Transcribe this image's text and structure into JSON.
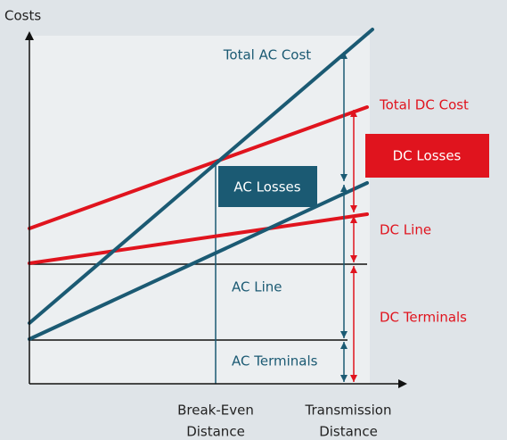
{
  "axis": {
    "y_label": "Costs"
  },
  "labels": {
    "total_ac_cost": "Total AC Cost",
    "total_dc_cost": "Total DC Cost",
    "dc_losses": "DC Losses",
    "ac_losses": "AC Losses",
    "dc_line": "DC Line",
    "ac_line": "AC Line",
    "dc_terminals": "DC Terminals",
    "ac_terminals": "AC Terminals"
  },
  "x_markers": {
    "break_even": [
      "Break-Even",
      "Distance"
    ],
    "transmission": [
      "Transmission",
      "Distance"
    ]
  }
}
